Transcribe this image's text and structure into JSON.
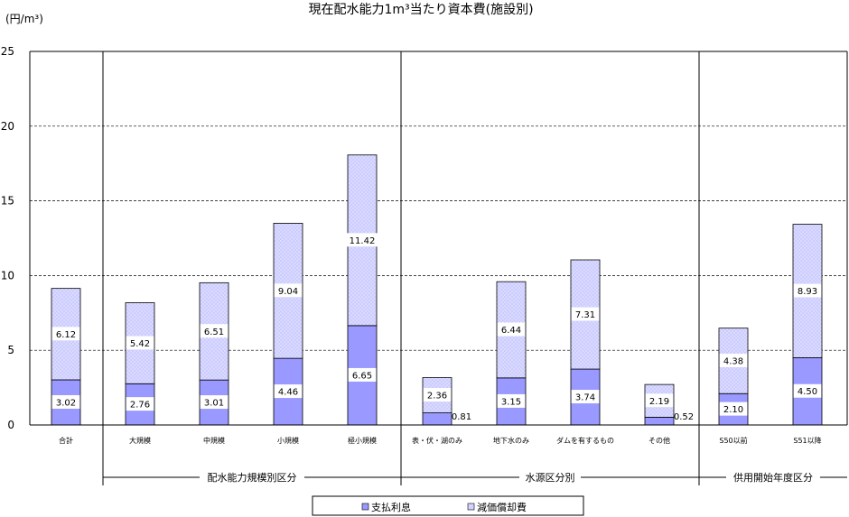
{
  "chart_data": {
    "type": "bar",
    "stacked": true,
    "title": "現在配水能力1m³当たり資本費(施設別)",
    "unit_label": "(円/m³)",
    "ylim": [
      0,
      25
    ],
    "yticks": [
      "0",
      "5",
      "10",
      "15",
      "20",
      "25"
    ],
    "grid": true,
    "categories": [
      "合計",
      "大規模",
      "中規模",
      "小規模",
      "極小規模",
      "表・伏・湖のみ",
      "地下水のみ",
      "ダムを有するもの",
      "その他",
      "S50以前",
      "S51以降"
    ],
    "series": [
      {
        "name": "支払利息",
        "color": "#9999ff",
        "values": [
          3.02,
          2.76,
          3.01,
          4.46,
          6.65,
          0.81,
          3.15,
          3.74,
          0.52,
          2.1,
          4.5
        ],
        "labels": [
          "3.02",
          "2.76",
          "3.01",
          "4.46",
          "6.65",
          "0.81",
          "3.15",
          "3.74",
          "0.52",
          "2.10",
          "4.50"
        ]
      },
      {
        "name": "減価償却費",
        "color": "#ccccff",
        "values": [
          6.12,
          5.42,
          6.51,
          9.04,
          11.42,
          2.36,
          6.44,
          7.31,
          2.19,
          4.38,
          8.93
        ],
        "labels": [
          "6.12",
          "5.42",
          "6.51",
          "9.04",
          "11.42",
          "2.36",
          "6.44",
          "7.31",
          "2.19",
          "4.38",
          "8.93"
        ]
      }
    ],
    "groups": [
      {
        "label": "配水能力規模別区分",
        "from": 1,
        "to": 4
      },
      {
        "label": "水源区分別",
        "from": 5,
        "to": 8
      },
      {
        "label": "供用開始年度区分",
        "from": 9,
        "to": 10
      }
    ],
    "legend_position": "bottom-center"
  }
}
